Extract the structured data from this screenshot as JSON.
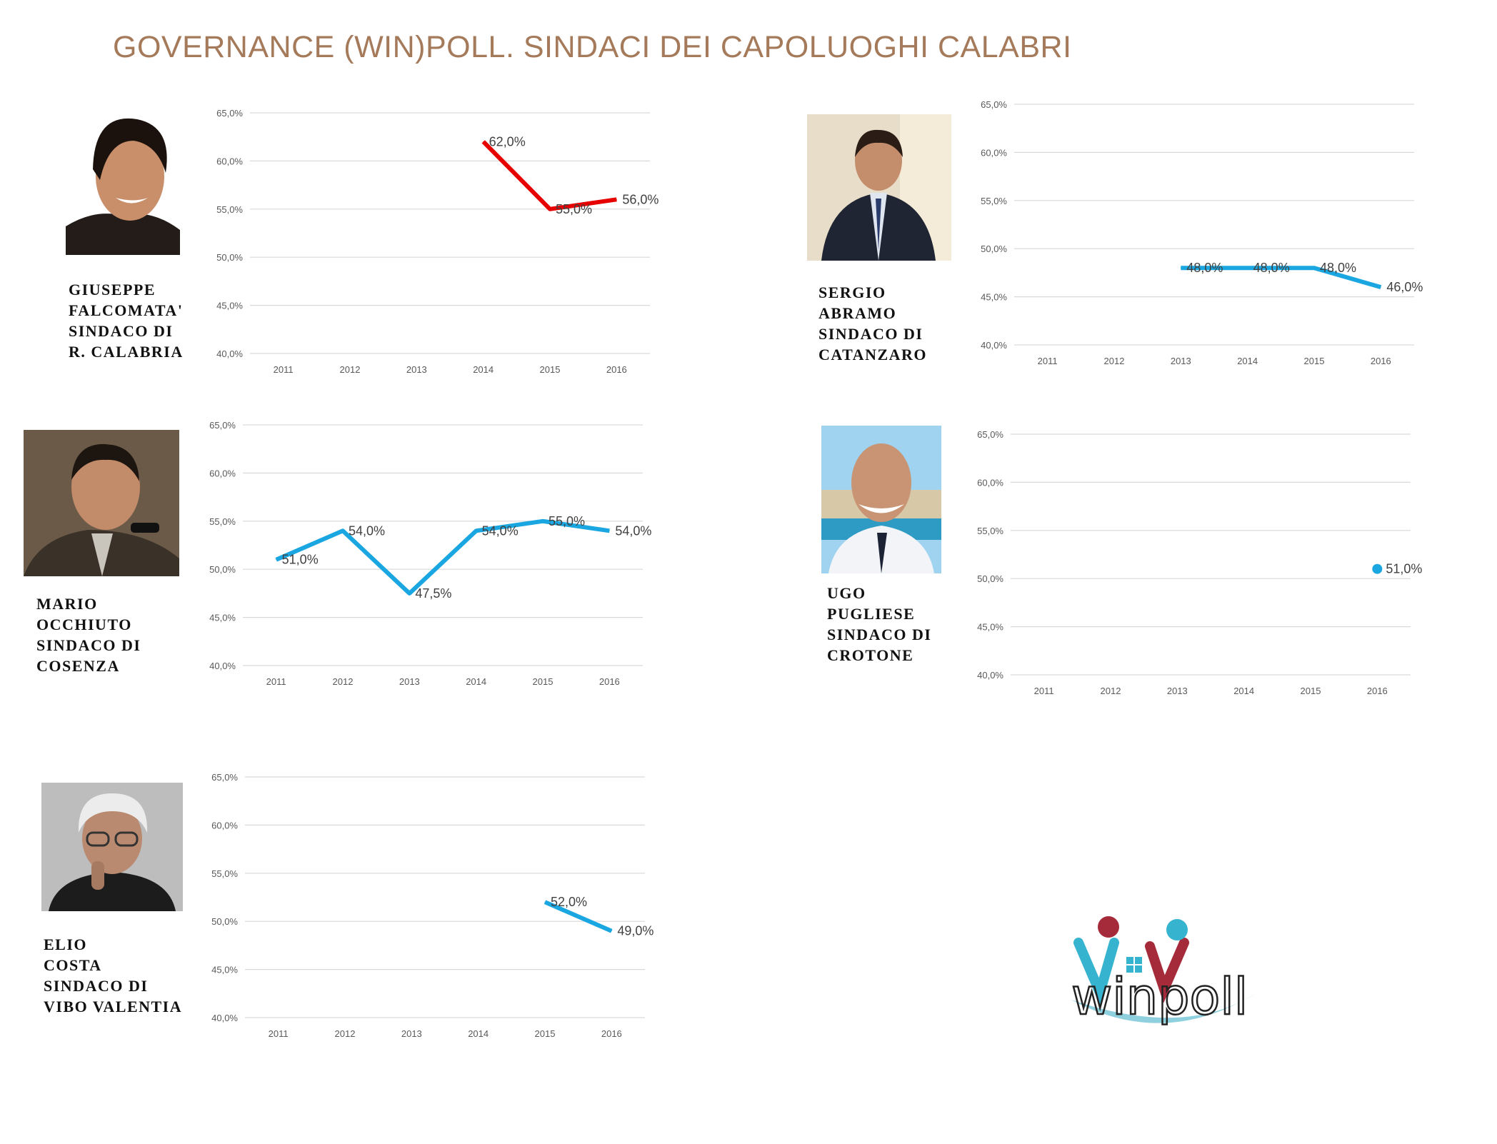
{
  "title": "GOVERNANCE (WIN)POLL. SINDACI DEI CAPOLUOGHI CALABRI",
  "mayors": [
    {
      "caption": [
        "GIUSEPPE",
        "FALCOMATA'",
        "SINDACO DI",
        "R. CALABRIA"
      ]
    },
    {
      "caption": [
        "SERGIO",
        "ABRAMO",
        "SINDACO DI",
        "CATANZARO"
      ]
    },
    {
      "caption": [
        "MARIO",
        "OCCHIUTO",
        "SINDACO DI",
        "COSENZA"
      ]
    },
    {
      "caption": [
        "UGO",
        "PUGLIESE",
        "SINDACO DI",
        "CROTONE"
      ]
    },
    {
      "caption": [
        "ELIO",
        "COSTA",
        "SINDACO DI",
        "VIBO VALENTIA"
      ]
    }
  ],
  "logo_text": "winpoll",
  "chart_data": [
    {
      "type": "line",
      "color": "#e60000",
      "categories": [
        "2011",
        "2012",
        "2013",
        "2014",
        "2015",
        "2016"
      ],
      "yticks": [
        "40,0%",
        "45,0%",
        "50,0%",
        "55,0%",
        "60,0%",
        "65,0%"
      ],
      "ylim": [
        40,
        65
      ],
      "grid": true,
      "series": [
        {
          "values": [
            null,
            null,
            null,
            62,
            55,
            56
          ],
          "labels": [
            null,
            null,
            null,
            "62,0%",
            "55,0%",
            "56,0%"
          ]
        }
      ]
    },
    {
      "type": "line",
      "color": "#1aa6e0",
      "categories": [
        "2011",
        "2012",
        "2013",
        "2014",
        "2015",
        "2016"
      ],
      "yticks": [
        "40,0%",
        "45,0%",
        "50,0%",
        "55,0%",
        "60,0%",
        "65,0%"
      ],
      "ylim": [
        40,
        65
      ],
      "grid": true,
      "series": [
        {
          "values": [
            null,
            null,
            48,
            48,
            48,
            46
          ],
          "labels": [
            null,
            null,
            "48,0%",
            "48,0%",
            "48,0%",
            "46,0%"
          ]
        }
      ]
    },
    {
      "type": "line",
      "color": "#1aa6e0",
      "categories": [
        "2011",
        "2012",
        "2013",
        "2014",
        "2015",
        "2016"
      ],
      "yticks": [
        "40,0%",
        "45,0%",
        "50,0%",
        "55,0%",
        "60,0%",
        "65,0%"
      ],
      "ylim": [
        40,
        65
      ],
      "grid": true,
      "series": [
        {
          "values": [
            51,
            54,
            47.5,
            54,
            55,
            54
          ],
          "labels": [
            "51,0%",
            "54,0%",
            "47,5%",
            "54,0%",
            "55,0%",
            "54,0%"
          ]
        }
      ]
    },
    {
      "type": "scatter",
      "color": "#1aa6e0",
      "categories": [
        "2011",
        "2012",
        "2013",
        "2014",
        "2015",
        "2016"
      ],
      "yticks": [
        "40,0%",
        "45,0%",
        "50,0%",
        "55,0%",
        "60,0%",
        "65,0%"
      ],
      "ylim": [
        40,
        65
      ],
      "grid": true,
      "series": [
        {
          "values": [
            null,
            null,
            null,
            null,
            null,
            51
          ],
          "labels": [
            null,
            null,
            null,
            null,
            null,
            "51,0%"
          ]
        }
      ]
    },
    {
      "type": "line",
      "color": "#1aa6e0",
      "categories": [
        "2011",
        "2012",
        "2013",
        "2014",
        "2015",
        "2016"
      ],
      "yticks": [
        "40,0%",
        "45,0%",
        "50,0%",
        "55,0%",
        "60,0%",
        "65,0%"
      ],
      "ylim": [
        40,
        65
      ],
      "grid": true,
      "series": [
        {
          "values": [
            null,
            null,
            null,
            null,
            52,
            49
          ],
          "labels": [
            null,
            null,
            null,
            null,
            "52,0%",
            "49,0%"
          ]
        }
      ]
    }
  ]
}
